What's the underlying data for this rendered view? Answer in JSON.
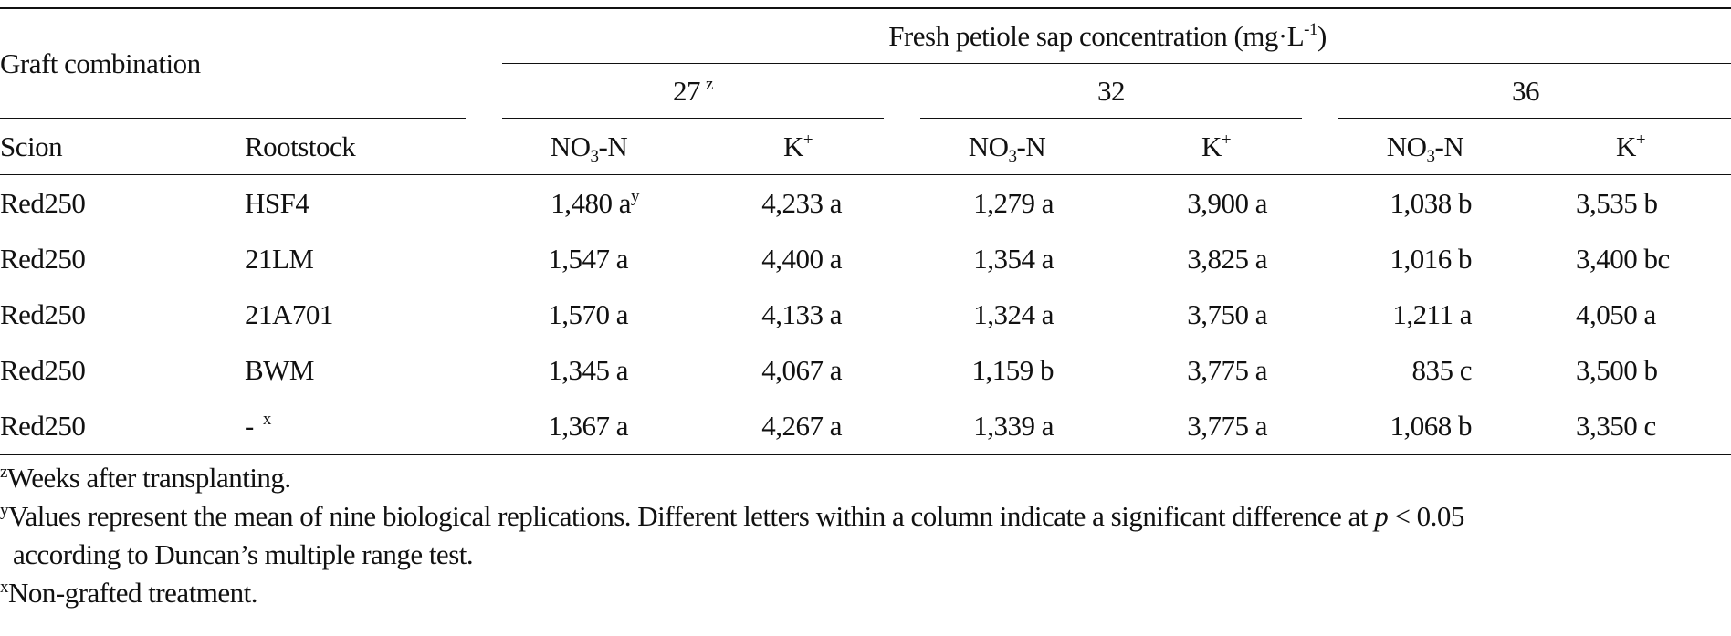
{
  "header": {
    "graft_combination": "Graft combination",
    "concentration_title": "Fresh petiole sap concentration (mg·L",
    "concentration_unit_sup": "-1",
    "concentration_close": ")",
    "weeks": [
      {
        "label": "27",
        "sup": "z"
      },
      {
        "label": "32",
        "sup": ""
      },
      {
        "label": "36",
        "sup": ""
      }
    ],
    "scion": "Scion",
    "rootstock": "Rootstock",
    "no3_pre": "NO",
    "no3_sub": "3",
    "no3_post": "-N",
    "k_base": "K",
    "k_sup": "+"
  },
  "rows": [
    {
      "scion": "Red250",
      "rootstock": "HSF4",
      "rootstock_sup": "",
      "values": [
        {
          "v": "1,480 a",
          "sup": "y"
        },
        {
          "v": "4,233 a"
        },
        {
          "v": "1,279 a"
        },
        {
          "v": "3,900 a"
        },
        {
          "v": "1,038 b"
        },
        {
          "v": "3,535 b"
        }
      ]
    },
    {
      "scion": "Red250",
      "rootstock": "21LM",
      "rootstock_sup": "",
      "values": [
        {
          "v": "1,547 a"
        },
        {
          "v": "4,400 a"
        },
        {
          "v": "1,354 a"
        },
        {
          "v": "3,825 a"
        },
        {
          "v": "1,016 b"
        },
        {
          "v": "3,400 bc"
        }
      ]
    },
    {
      "scion": "Red250",
      "rootstock": "21A701",
      "rootstock_sup": "",
      "values": [
        {
          "v": "1,570 a"
        },
        {
          "v": "4,133 a"
        },
        {
          "v": "1,324 a"
        },
        {
          "v": "3,750 a"
        },
        {
          "v": "1,211 a"
        },
        {
          "v": "4,050 a"
        }
      ]
    },
    {
      "scion": "Red250",
      "rootstock": "BWM",
      "rootstock_sup": "",
      "values": [
        {
          "v": "1,345 a"
        },
        {
          "v": "4,067 a"
        },
        {
          "v": "1,159 b"
        },
        {
          "v": "3,775 a"
        },
        {
          "v": "835 c"
        },
        {
          "v": "3,500 b"
        }
      ]
    },
    {
      "scion": "Red250",
      "rootstock": "-",
      "rootstock_sup": "x",
      "values": [
        {
          "v": "1,367 a"
        },
        {
          "v": "4,267 a"
        },
        {
          "v": "1,339 a"
        },
        {
          "v": "3,775 a"
        },
        {
          "v": "1,068 b"
        },
        {
          "v": "3,350 c"
        }
      ]
    }
  ],
  "notes": {
    "z_mark": "z",
    "z_text": "Weeks after transplanting.",
    "y_mark": "y",
    "y_text_1": "Values represent the mean of nine biological replications. Different letters within a column indicate a significant difference at ",
    "y_p": "p",
    "y_text_2": " < 0.05",
    "y_text_3": "according to Duncan’s multiple range test.",
    "x_mark": "x",
    "x_text": "Non-grafted treatment."
  }
}
